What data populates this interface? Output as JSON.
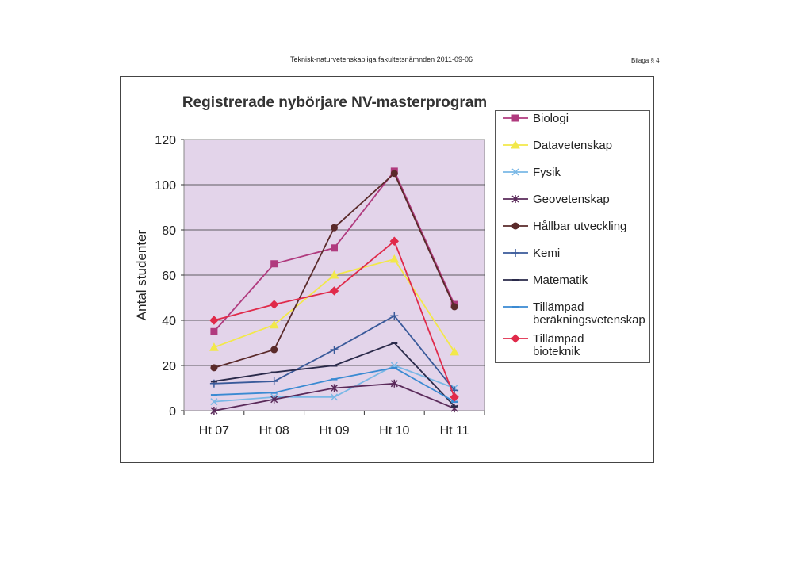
{
  "document": {
    "header": "Teknisk-naturvetenskapliga fakultetsnämnden 2011-09-06",
    "annex": "Bilaga § 4"
  },
  "chart_data": {
    "type": "line",
    "title": "Registrerade nybörjare NV-masterprogram",
    "xlabel": "",
    "ylabel": "Antal studenter",
    "categories": [
      "Ht 07",
      "Ht 08",
      "Ht 09",
      "Ht 10",
      "Ht 11"
    ],
    "ylim": [
      0,
      120
    ],
    "yticks": [
      0,
      20,
      40,
      60,
      80,
      100,
      120
    ],
    "grid": true,
    "legend_position": "right",
    "plot_background": "#e3d4ea",
    "series": [
      {
        "name": "Biologi",
        "values": [
          35,
          65,
          72,
          106,
          47
        ],
        "color": "#b03a7e",
        "marker": "square"
      },
      {
        "name": "Datavetenskap",
        "values": [
          28,
          38,
          60,
          67,
          26
        ],
        "color": "#f2e84a",
        "marker": "triangle"
      },
      {
        "name": "Fysik",
        "values": [
          4,
          6,
          6,
          20,
          10
        ],
        "color": "#7ab8e6",
        "marker": "x"
      },
      {
        "name": "Geovetenskap",
        "values": [
          0,
          5,
          10,
          12,
          1
        ],
        "color": "#5a2a5a",
        "marker": "star"
      },
      {
        "name": "Hållbar utveckling",
        "values": [
          19,
          27,
          81,
          105,
          46
        ],
        "color": "#5a2a2a",
        "marker": "circle"
      },
      {
        "name": "Kemi",
        "values": [
          12,
          13,
          27,
          42,
          9
        ],
        "color": "#3a5a9a",
        "marker": "plus"
      },
      {
        "name": "Matematik",
        "values": [
          13,
          17,
          20,
          30,
          2
        ],
        "color": "#2a2a4a",
        "marker": "dash"
      },
      {
        "name": "Tillämpad beräkningsvetenskap",
        "values": [
          7,
          8,
          14,
          19,
          4
        ],
        "color": "#3a8ad2",
        "marker": "dash"
      },
      {
        "name": "Tillämpad bioteknik",
        "values": [
          40,
          47,
          53,
          75,
          6
        ],
        "color": "#e02a4a",
        "marker": "diamond"
      }
    ]
  }
}
